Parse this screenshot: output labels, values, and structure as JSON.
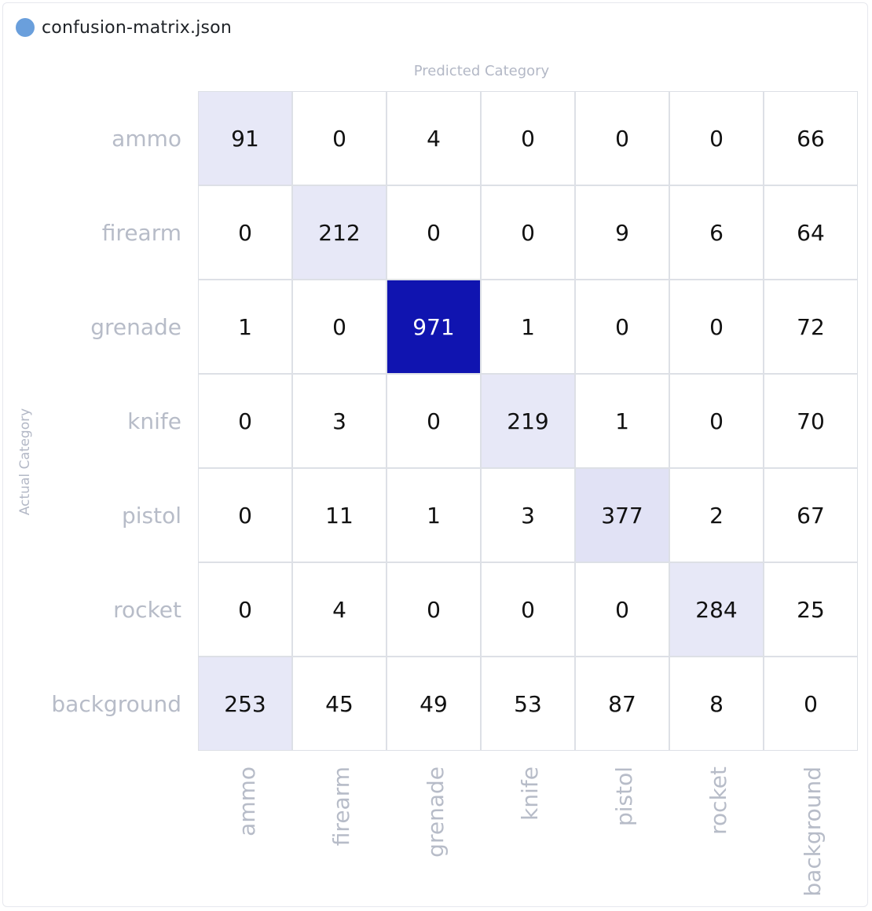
{
  "file": {
    "name": "confusion-matrix.json",
    "dot_color": "#6a9fdc"
  },
  "colors": {
    "low": "#ffffff",
    "high": "#1014b0",
    "grid": "#dde0e6",
    "label": "#b7bcc8"
  },
  "chart_data": {
    "type": "heatmap",
    "xlabel": "Predicted Category",
    "ylabel": "Actual Category",
    "x_categories": [
      "ammo",
      "firearm",
      "grenade",
      "knife",
      "pistol",
      "rocket",
      "background"
    ],
    "y_categories": [
      "ammo",
      "firearm",
      "grenade",
      "knife",
      "pistol",
      "rocket",
      "background"
    ],
    "values": [
      [
        91,
        0,
        4,
        0,
        0,
        0,
        66
      ],
      [
        0,
        212,
        0,
        0,
        9,
        6,
        64
      ],
      [
        1,
        0,
        971,
        1,
        0,
        0,
        72
      ],
      [
        0,
        3,
        0,
        219,
        1,
        0,
        70
      ],
      [
        0,
        11,
        1,
        3,
        377,
        2,
        67
      ],
      [
        0,
        4,
        0,
        0,
        0,
        284,
        25
      ],
      [
        253,
        45,
        49,
        53,
        87,
        8,
        0
      ]
    ]
  }
}
